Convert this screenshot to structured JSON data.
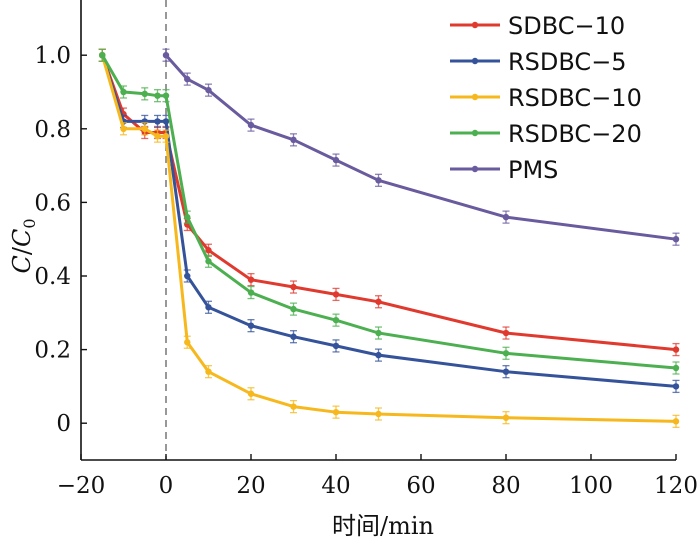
{
  "chart_data": {
    "type": "line",
    "xlabel": "时间/min",
    "ylabel_main": "C",
    "ylabel_sep": "/",
    "ylabel_sub_main": "C",
    "ylabel_sub": "0",
    "xlim": [
      -20,
      120
    ],
    "ylim": [
      -0.1,
      1.15
    ],
    "xticks": [
      -20,
      0,
      20,
      40,
      60,
      80,
      100,
      120
    ],
    "xtick_labels": [
      "−20",
      "0",
      "20",
      "40",
      "60",
      "80",
      "100",
      "120"
    ],
    "yticks": [
      0,
      0.2,
      0.4,
      0.6,
      0.8,
      1.0
    ],
    "ytick_labels": [
      "0",
      "0.2",
      "0.4",
      "0.6",
      "0.8",
      "1.0"
    ],
    "reference_line_x": 0,
    "legend_position": "top-right",
    "series": [
      {
        "name": "SDBC−10",
        "color": "#e03a2f",
        "x": [
          -15,
          -10,
          -5,
          -2,
          0,
          5,
          10,
          20,
          30,
          40,
          50,
          80,
          120
        ],
        "y": [
          1.0,
          0.84,
          0.79,
          0.79,
          0.79,
          0.54,
          0.47,
          0.39,
          0.37,
          0.35,
          0.33,
          0.245,
          0.2
        ]
      },
      {
        "name": "RSDBC−5",
        "color": "#35539a",
        "x": [
          -15,
          -10,
          -5,
          -2,
          0,
          5,
          10,
          20,
          30,
          40,
          50,
          80,
          120
        ],
        "y": [
          1.0,
          0.82,
          0.82,
          0.82,
          0.82,
          0.4,
          0.315,
          0.265,
          0.235,
          0.21,
          0.185,
          0.14,
          0.1
        ]
      },
      {
        "name": "RSDBC−10",
        "color": "#f6b81c",
        "x": [
          -15,
          -10,
          -5,
          -2,
          0,
          5,
          10,
          20,
          30,
          40,
          50,
          80,
          120
        ],
        "y": [
          1.0,
          0.8,
          0.8,
          0.78,
          0.78,
          0.22,
          0.14,
          0.08,
          0.045,
          0.03,
          0.025,
          0.015,
          0.005
        ]
      },
      {
        "name": "RSDBC−20",
        "color": "#4caf50",
        "x": [
          -15,
          -10,
          -5,
          -2,
          0,
          5,
          10,
          20,
          30,
          40,
          50,
          80,
          120
        ],
        "y": [
          1.0,
          0.9,
          0.895,
          0.89,
          0.89,
          0.56,
          0.44,
          0.355,
          0.31,
          0.28,
          0.245,
          0.19,
          0.15
        ]
      },
      {
        "name": "PMS",
        "color": "#6a5a9e",
        "x": [
          0,
          5,
          10,
          20,
          30,
          40,
          50,
          80,
          120
        ],
        "y": [
          1.0,
          0.935,
          0.905,
          0.81,
          0.77,
          0.715,
          0.66,
          0.56,
          0.5
        ]
      }
    ]
  }
}
